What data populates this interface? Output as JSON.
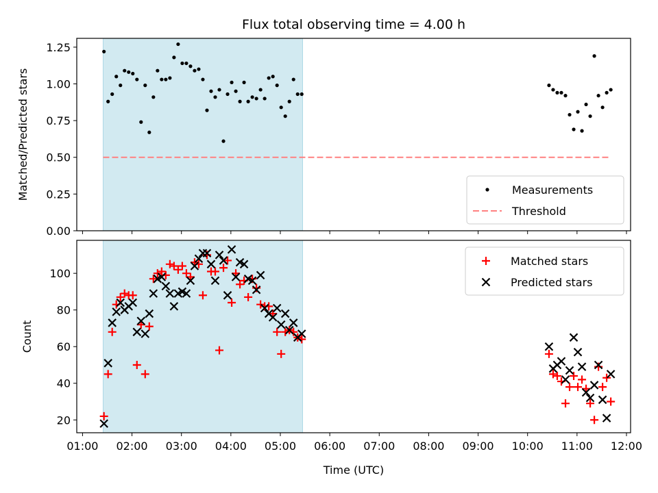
{
  "figure": {
    "title": "Flux total observing time = 4.00 h"
  },
  "colors": {
    "shade": "#add8e6",
    "threshold": "#ff8080",
    "measurement": "#000000",
    "matched": "#ff0000",
    "predicted": "#000000"
  },
  "chart_data": [
    {
      "type": "scatter",
      "title": "Flux total observing time = 4.00 h",
      "ylabel": "Matched/Predicted stars",
      "xlim": [
        "00:53",
        "12:05"
      ],
      "ylim": [
        0,
        1.31
      ],
      "yticks": [
        "0.00",
        "0.25",
        "0.50",
        "0.75",
        "1.00",
        "1.25"
      ],
      "shaded_region": [
        "01:25",
        "05:27"
      ],
      "grid": false,
      "legend_position": "lower right",
      "threshold": {
        "name": "Threshold",
        "y": 0.5,
        "x": [
          "01:25",
          "11:40"
        ]
      },
      "series": [
        {
          "name": "Measurements",
          "marker": "dot",
          "x": [
            "01:26",
            "01:31",
            "01:36",
            "01:41",
            "01:46",
            "01:51",
            "01:56",
            "02:01",
            "02:06",
            "02:11",
            "02:16",
            "02:21",
            "02:26",
            "02:31",
            "02:36",
            "02:41",
            "02:46",
            "02:51",
            "02:56",
            "03:01",
            "03:06",
            "03:11",
            "03:16",
            "03:21",
            "03:26",
            "03:31",
            "03:36",
            "03:41",
            "03:46",
            "03:51",
            "03:56",
            "04:01",
            "04:06",
            "04:11",
            "04:16",
            "04:21",
            "04:26",
            "04:31",
            "04:36",
            "04:41",
            "04:46",
            "04:51",
            "04:56",
            "05:01",
            "05:06",
            "05:11",
            "05:16",
            "05:21",
            "05:26",
            "10:26",
            "10:31",
            "10:36",
            "10:41",
            "10:46",
            "10:51",
            "10:56",
            "11:01",
            "11:06",
            "11:11",
            "11:16",
            "11:21",
            "11:26",
            "11:31",
            "11:36",
            "11:41"
          ],
          "y": [
            1.22,
            0.88,
            0.93,
            1.05,
            0.99,
            1.09,
            1.08,
            1.07,
            1.03,
            0.74,
            0.99,
            0.67,
            0.91,
            1.09,
            1.03,
            1.03,
            1.04,
            1.18,
            1.27,
            1.14,
            1.14,
            1.12,
            1.09,
            1.1,
            1.03,
            0.82,
            0.95,
            0.91,
            0.96,
            0.61,
            0.93,
            1.01,
            0.95,
            0.88,
            1.01,
            0.88,
            0.91,
            0.9,
            0.96,
            0.9,
            1.04,
            1.05,
            0.99,
            0.84,
            0.78,
            0.88,
            1.03,
            0.93,
            0.93,
            0.99,
            0.96,
            0.94,
            0.94,
            0.92,
            0.79,
            0.69,
            0.81,
            0.68,
            0.86,
            0.78,
            1.19,
            0.92,
            0.84,
            0.94,
            0.96
          ]
        }
      ]
    },
    {
      "type": "scatter",
      "xlabel": "Time (UTC)",
      "ylabel": "Count",
      "xlim": [
        "00:53",
        "12:05"
      ],
      "ylim": [
        13,
        118
      ],
      "xticks": [
        "01:00",
        "02:00",
        "03:00",
        "04:00",
        "05:00",
        "06:00",
        "07:00",
        "08:00",
        "09:00",
        "10:00",
        "11:00",
        "12:00"
      ],
      "yticks": [
        "20",
        "40",
        "60",
        "80",
        "100"
      ],
      "shaded_region": [
        "01:25",
        "05:27"
      ],
      "grid": false,
      "legend_position": "upper right",
      "series": [
        {
          "name": "Matched stars",
          "marker": "plus",
          "x": [
            "01:26",
            "01:31",
            "01:36",
            "01:41",
            "01:46",
            "01:51",
            "01:56",
            "02:01",
            "02:06",
            "02:11",
            "02:16",
            "02:21",
            "02:26",
            "02:31",
            "02:36",
            "02:41",
            "02:46",
            "02:51",
            "02:56",
            "03:01",
            "03:06",
            "03:11",
            "03:16",
            "03:21",
            "03:26",
            "03:31",
            "03:36",
            "03:41",
            "03:46",
            "03:51",
            "03:56",
            "04:01",
            "04:06",
            "04:11",
            "04:16",
            "04:21",
            "04:26",
            "04:31",
            "04:36",
            "04:41",
            "04:46",
            "04:51",
            "04:56",
            "05:01",
            "05:06",
            "05:11",
            "05:16",
            "05:21",
            "05:26",
            "10:26",
            "10:31",
            "10:36",
            "10:41",
            "10:46",
            "10:51",
            "10:56",
            "11:01",
            "11:06",
            "11:11",
            "11:16",
            "11:21",
            "11:26",
            "11:31",
            "11:36",
            "11:41"
          ],
          "y": [
            22,
            45,
            68,
            83,
            87,
            89,
            88,
            88,
            50,
            72,
            45,
            71,
            97,
            100,
            101,
            99,
            105,
            104,
            102,
            104,
            100,
            98,
            106,
            105,
            88,
            110,
            101,
            101,
            58,
            103,
            107,
            84,
            100,
            94,
            96,
            87,
            97,
            92,
            83,
            82,
            82,
            78,
            68,
            56,
            68,
            69,
            68,
            65,
            64,
            56,
            45,
            44,
            41,
            29,
            38,
            44,
            38,
            42,
            37,
            29,
            20,
            49,
            38,
            43,
            30
          ]
        },
        {
          "name": "Predicted stars",
          "marker": "x",
          "x": [
            "01:26",
            "01:31",
            "01:36",
            "01:41",
            "01:46",
            "01:51",
            "01:56",
            "02:01",
            "02:06",
            "02:11",
            "02:16",
            "02:21",
            "02:26",
            "02:31",
            "02:36",
            "02:41",
            "02:46",
            "02:51",
            "02:56",
            "03:01",
            "03:06",
            "03:11",
            "03:16",
            "03:21",
            "03:26",
            "03:31",
            "03:36",
            "03:41",
            "03:46",
            "03:51",
            "03:56",
            "04:01",
            "04:06",
            "04:11",
            "04:16",
            "04:21",
            "04:26",
            "04:31",
            "04:36",
            "04:41",
            "04:46",
            "04:51",
            "04:56",
            "05:01",
            "05:06",
            "05:11",
            "05:16",
            "05:21",
            "05:26",
            "10:26",
            "10:31",
            "10:36",
            "10:41",
            "10:46",
            "10:51",
            "10:56",
            "11:01",
            "11:06",
            "11:11",
            "11:16",
            "11:21",
            "11:26",
            "11:31",
            "11:36",
            "11:41"
          ],
          "y": [
            18,
            51,
            73,
            79,
            84,
            80,
            82,
            84,
            68,
            74,
            67,
            78,
            89,
            97,
            98,
            93,
            89,
            82,
            89,
            90,
            89,
            96,
            104,
            108,
            111,
            111,
            105,
            96,
            110,
            107,
            88,
            113,
            98,
            106,
            105,
            97,
            96,
            91,
            99,
            81,
            78,
            76,
            81,
            72,
            78,
            69,
            73,
            65,
            67,
            60,
            48,
            50,
            52,
            42,
            47,
            65,
            57,
            49,
            35,
            32,
            39,
            50,
            31,
            21,
            45
          ]
        }
      ]
    }
  ]
}
